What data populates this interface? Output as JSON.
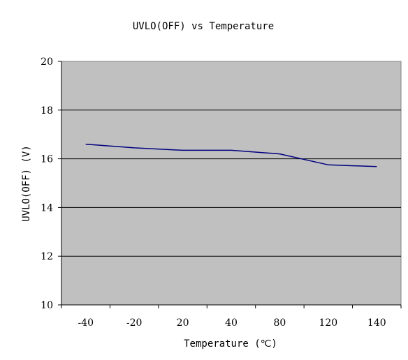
{
  "chart_data": {
    "type": "line",
    "title": "UVLO(OFF) vs Temperature",
    "xlabel": "Temperature (℃)",
    "ylabel": "UVLO(OFF) (V)",
    "categories": [
      "-40",
      "-20",
      "20",
      "40",
      "80",
      "120",
      "140"
    ],
    "series": [
      {
        "values": [
          16.6,
          16.45,
          16.35,
          16.35,
          16.2,
          15.75,
          15.68
        ]
      }
    ],
    "ylim": [
      10,
      20
    ],
    "yticks": [
      "10",
      "12",
      "14",
      "16",
      "18",
      "20"
    ],
    "grid": "horizontal",
    "legend": "none"
  },
  "colors": {
    "plot_background": "#c0c0c0",
    "series_line": "#000080",
    "gridline": "#000000",
    "page_background": "#ffffff"
  }
}
